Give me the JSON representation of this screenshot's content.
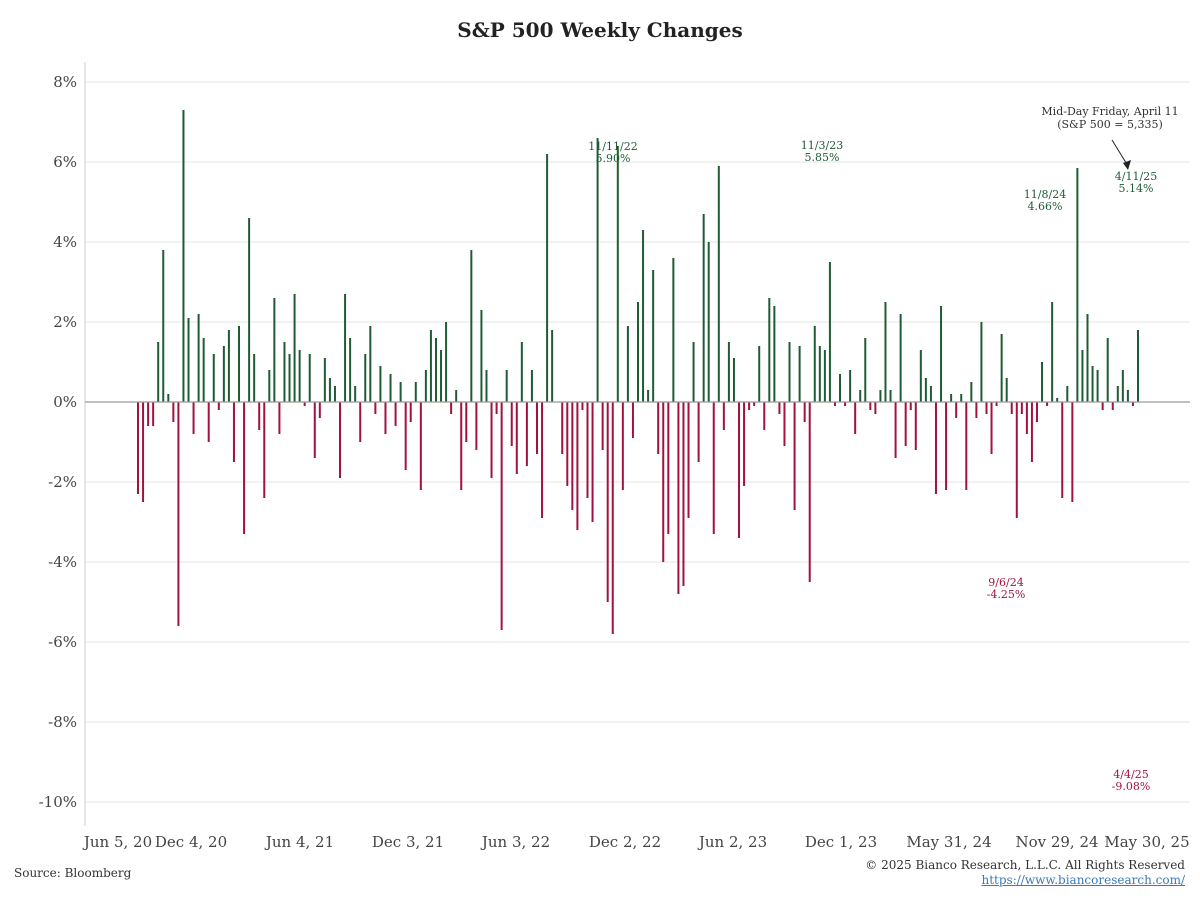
{
  "chart_data": {
    "type": "bar",
    "title": "S&P 500 Weekly Changes",
    "xlabel": "",
    "ylabel": "",
    "ylim": [
      -10.5,
      8.5
    ],
    "y_ticks": [
      "8%",
      "6%",
      "4%",
      "2%",
      "0%",
      "-2%",
      "-4%",
      "-6%",
      "-8%",
      "-10%"
    ],
    "y_tick_values": [
      8,
      6,
      4,
      2,
      0,
      -2,
      -4,
      -6,
      -8,
      -10
    ],
    "x_ticks": [
      "Jun 5, 20",
      "Dec 4, 20",
      "Jun 4, 21",
      "Dec 3, 21",
      "Jun 3, 22",
      "Dec 2, 22",
      "Jun 2, 23",
      "Dec 1, 23",
      "May 31, 24",
      "Nov 29, 24",
      "May 30, 25"
    ],
    "x_start": "Jun 5, 20",
    "x_end": "May 30, 25",
    "grid": true,
    "colors": {
      "positive": "#1f5c35",
      "negative": "#a3123e",
      "zero_line": "#999999",
      "grid": "#e6e6e6"
    },
    "values": [
      -2.3,
      -2.5,
      -0.6,
      -0.6,
      1.5,
      3.8,
      0.2,
      -0.5,
      -5.6,
      7.3,
      2.1,
      -0.8,
      2.2,
      1.6,
      -1.0,
      1.2,
      -0.2,
      1.4,
      1.8,
      -1.5,
      1.9,
      -3.3,
      4.6,
      1.2,
      -0.7,
      -2.4,
      0.8,
      2.6,
      -0.8,
      1.5,
      1.2,
      2.7,
      1.3,
      -0.1,
      1.2,
      -1.4,
      -0.4,
      1.1,
      0.6,
      0.4,
      -1.9,
      2.7,
      1.6,
      0.4,
      -1.0,
      1.2,
      1.9,
      -0.3,
      0.9,
      -0.8,
      0.7,
      -0.6,
      0.5,
      -1.7,
      -0.5,
      0.5,
      -2.2,
      0.8,
      1.8,
      1.6,
      1.3,
      2.0,
      -0.3,
      0.3,
      -2.2,
      -1.0,
      3.8,
      -1.2,
      2.3,
      0.8,
      -1.9,
      -0.3,
      -5.7,
      0.8,
      -1.1,
      -1.8,
      1.5,
      -1.6,
      0.8,
      -1.3,
      -2.9,
      6.2,
      1.8,
      0.0,
      -1.3,
      -2.1,
      -2.7,
      -3.2,
      -0.2,
      -2.4,
      -3.0,
      6.6,
      -1.2,
      -5.0,
      -5.8,
      6.4,
      -2.2,
      1.9,
      -0.9,
      2.5,
      4.3,
      0.3,
      3.3,
      -1.3,
      -4.0,
      -3.3,
      3.6,
      -4.8,
      -4.6,
      -2.9,
      1.5,
      -1.5,
      4.7,
      4.0,
      -3.3,
      5.9,
      -0.7,
      1.5,
      1.1,
      -3.4,
      -2.1,
      -0.2,
      -0.1,
      1.4,
      -0.7,
      2.6,
      2.4,
      -0.3,
      -1.1,
      1.5,
      -2.7,
      1.4,
      -0.5,
      -4.5,
      1.9,
      1.4,
      1.3,
      3.5,
      -0.1,
      0.7,
      -0.1,
      0.8,
      -0.8,
      0.3,
      1.6,
      -0.2,
      -0.3,
      0.3,
      2.5,
      0.3,
      -1.4,
      2.2,
      -1.1,
      -0.2,
      -1.2,
      1.3,
      0.6,
      0.4,
      -2.3,
      2.4,
      -2.2,
      0.2,
      -0.4,
      0.2,
      -2.2,
      0.5,
      -0.4,
      2.0,
      -0.3,
      -1.3,
      -0.1,
      1.7,
      0.6,
      -0.3,
      -2.9,
      -0.3,
      -0.8,
      -1.5,
      -0.5,
      1.0,
      -0.1,
      2.5,
      0.1,
      -2.4,
      0.4,
      -2.5,
      5.85,
      1.3,
      2.2,
      0.9,
      0.8,
      -0.2,
      1.6,
      -0.2,
      0.4,
      0.8,
      0.3,
      -0.1,
      1.8
    ],
    "highlights": [
      {
        "index": 8,
        "label": "-5.6"
      },
      {
        "index": 9,
        "label": "7.3"
      }
    ],
    "annotations": {
      "nov_11_22": {
        "date": "11/11/22",
        "value": "5.90%"
      },
      "nov_3_23": {
        "date": "11/3/23",
        "value": "5.85%"
      },
      "nov_8_24": {
        "date": "11/8/24",
        "value": "4.66%"
      },
      "apr_11_25": {
        "date": "4/11/25",
        "value": "5.14%"
      },
      "sep_6_24": {
        "date": "9/6/24",
        "value": "-4.25%"
      },
      "apr_4_25": {
        "date": "4/4/25",
        "value": "-9.08%"
      },
      "midday_note_line1": "Mid-Day Friday, April 11",
      "midday_note_line2": "(S&P 500 = 5,335)"
    }
  },
  "footer": {
    "source": "Source: Bloomberg",
    "copyright": "© 2025 Bianco Research, L.L.C. All Rights Reserved",
    "url": "https://www.biancoresearch.com/"
  }
}
